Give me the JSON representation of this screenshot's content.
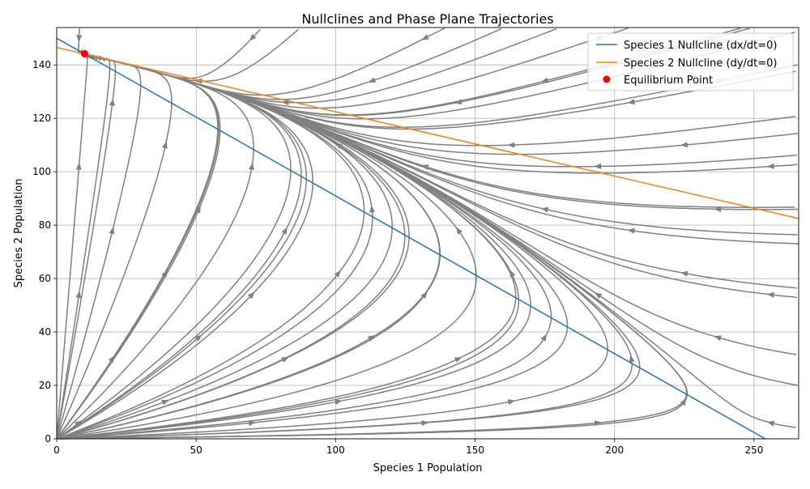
{
  "chart_data": {
    "type": "line",
    "title": "Nullclines and Phase Plane Trajectories",
    "xlabel": "Species 1 Population",
    "ylabel": "Species 2 Population",
    "xlim": [
      0,
      266
    ],
    "ylim": [
      0,
      154
    ],
    "xticks": [
      0,
      50,
      100,
      150,
      200,
      250
    ],
    "yticks": [
      0,
      20,
      40,
      60,
      80,
      100,
      120,
      140
    ],
    "grid": true,
    "legend_position": "top-right",
    "series": [
      {
        "name": "Species 1 Nullcline (dx/dt=0)",
        "color": "#1f77b4",
        "x": [
          0,
          254
        ],
        "y": [
          150,
          0
        ]
      },
      {
        "name": "Species 2 Nullcline (dy/dt=0)",
        "color": "#ff7f0e",
        "x": [
          0,
          266
        ],
        "y": [
          146.5,
          82.5
        ]
      }
    ],
    "equilibrium": {
      "name": "Equilibrium Point",
      "color": "#ff0000",
      "x": 10,
      "y": 144.2
    },
    "streamlines": {
      "color": "#808080"
    }
  }
}
